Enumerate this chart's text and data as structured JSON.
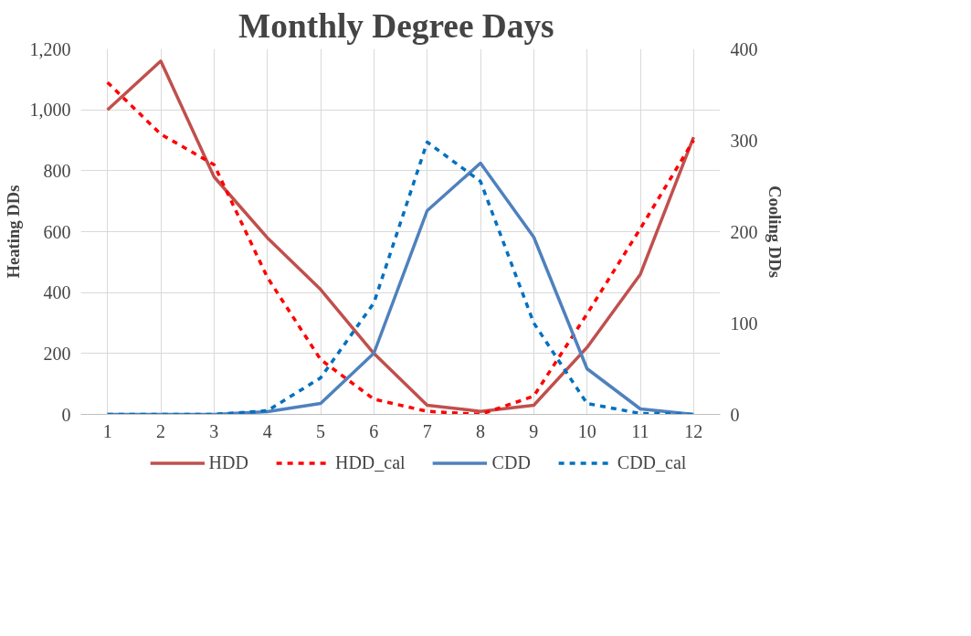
{
  "chart_data": {
    "type": "line",
    "title": "Monthly  Degree Days",
    "ylabel": "Heating DDs",
    "y2label": "Cooling DDs",
    "x": [
      1,
      2,
      3,
      4,
      5,
      6,
      7,
      8,
      9,
      10,
      11,
      12
    ],
    "xlim": [
      0.5,
      12.5
    ],
    "xticks": [
      1,
      2,
      3,
      4,
      5,
      6,
      7,
      8,
      9,
      10,
      11,
      12
    ],
    "ylim": [
      0,
      1200
    ],
    "yticks": [
      {
        "value": 0,
        "label": "0"
      },
      {
        "value": 200,
        "label": "200"
      },
      {
        "value": 400,
        "label": "400"
      },
      {
        "value": 600,
        "label": "600"
      },
      {
        "value": 800,
        "label": "800"
      },
      {
        "value": 1000,
        "label": "1,000"
      },
      {
        "value": 1200,
        "label": "1,200"
      }
    ],
    "y2lim": [
      0,
      400
    ],
    "y2ticks": [
      0,
      100,
      200,
      300,
      400
    ],
    "grid": true,
    "legend": "bottom",
    "marker": "none",
    "series": [
      {
        "name": "HDD",
        "color": "#c0504d",
        "line_style": "solid",
        "values": [
          1000,
          1160,
          780,
          580,
          410,
          200,
          30,
          10,
          30,
          220,
          460,
          910
        ]
      },
      {
        "name": "HDD_cal",
        "color": "#ff0000",
        "line_style": "dashed",
        "values": [
          1090,
          920,
          820,
          450,
          180,
          50,
          10,
          0,
          60,
          330,
          610,
          900
        ]
      },
      {
        "name": "CDD",
        "color": "#4f81bd",
        "line_style": "solid",
        "axis": "y2",
        "values": [
          0,
          0,
          0,
          3,
          12,
          67,
          223,
          275,
          194,
          50,
          6,
          0
        ]
      },
      {
        "name": "CDD_cal",
        "color": "#0070c0",
        "line_style": "dashed",
        "axis": "y2",
        "values": [
          0,
          0,
          0,
          4,
          40,
          122,
          298,
          255,
          100,
          12,
          1,
          0
        ]
      }
    ]
  }
}
